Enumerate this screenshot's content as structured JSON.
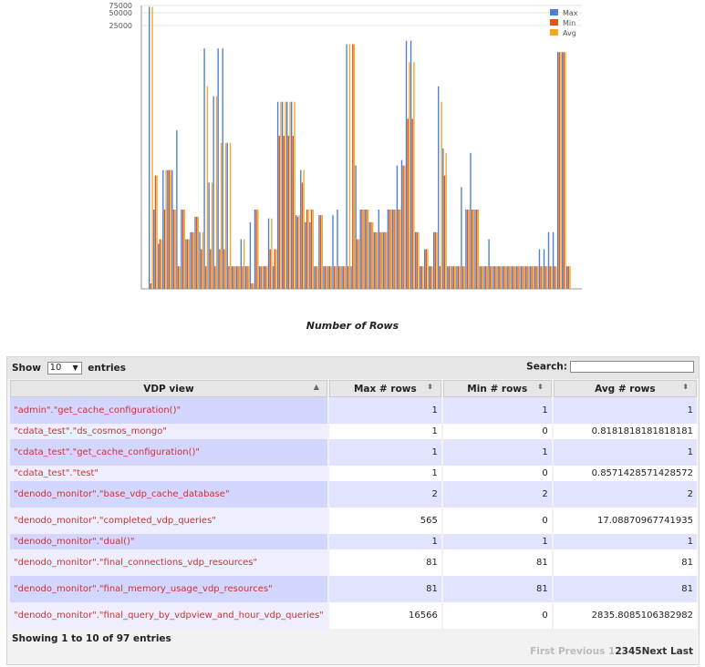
{
  "chart_data": {
    "type": "bar",
    "title": "Number of Rows",
    "y_tick_labels": [
      "75000",
      "50000",
      "25000"
    ],
    "legend": {
      "placement": "top-right",
      "entries": [
        "Max",
        "Min",
        "Avg"
      ]
    },
    "series_colors": {
      "Max": "#4f7fd6",
      "Min": "#e0571a",
      "Avg": "#f5a623"
    },
    "series": [
      {
        "name": "Max",
        "values": [
          76000,
          20,
          5,
          100,
          100,
          100,
          500,
          20,
          6,
          8,
          15,
          8,
          14000,
          60,
          2000,
          14000,
          14000,
          300,
          2,
          2,
          6,
          2,
          12,
          20,
          2,
          2,
          14,
          2,
          1600,
          1600,
          1600,
          1600,
          16,
          100,
          12,
          12,
          2,
          16,
          2,
          2,
          16,
          20,
          2,
          16566,
          2,
          120,
          20,
          20,
          12,
          8,
          20,
          8,
          20,
          20,
          120,
          150,
          19000,
          19000,
          8,
          2,
          4,
          2,
          8,
          3000,
          240,
          2,
          2,
          2,
          50,
          20,
          200,
          20,
          2,
          2,
          6,
          2,
          2,
          2,
          2,
          2,
          2,
          2,
          2,
          2,
          2,
          4,
          4,
          8,
          8,
          12000,
          12000,
          2
        ]
      },
      {
        "name": "Min",
        "values": [
          1,
          80,
          6,
          20,
          100,
          20,
          2,
          20,
          6,
          8,
          15,
          4,
          2,
          4,
          2,
          4,
          4,
          2,
          2,
          2,
          2,
          2,
          1,
          20,
          2,
          2,
          4,
          4,
          400,
          400,
          400,
          400,
          15,
          60,
          20,
          20,
          2,
          16,
          2,
          2,
          2,
          2,
          2,
          2,
          16566,
          6,
          20,
          20,
          12,
          8,
          8,
          8,
          20,
          20,
          20,
          120,
          800,
          800,
          8,
          2,
          4,
          2,
          8,
          2,
          80,
          2,
          2,
          2,
          2,
          20,
          20,
          20,
          2,
          2,
          2,
          2,
          2,
          2,
          2,
          2,
          2,
          2,
          2,
          2,
          2,
          2,
          2,
          2,
          2,
          12000,
          12000,
          2
        ]
      },
      {
        "name": "Avg",
        "values": [
          76000,
          80,
          6,
          100,
          100,
          20,
          2,
          20,
          6,
          8,
          15,
          8,
          3000,
          60,
          2000,
          300,
          300,
          300,
          2,
          2,
          6,
          2,
          1,
          20,
          2,
          2,
          14,
          4,
          1600,
          1600,
          1600,
          1600,
          16,
          100,
          20,
          20,
          2,
          16,
          2,
          2,
          2,
          2,
          2,
          16566,
          16566,
          6,
          20,
          20,
          12,
          8,
          8,
          8,
          20,
          20,
          20,
          120,
          8000,
          8000,
          8,
          2,
          4,
          2,
          8,
          1600,
          200,
          2,
          2,
          2,
          2,
          20,
          20,
          20,
          2,
          2,
          2,
          2,
          2,
          2,
          2,
          2,
          2,
          2,
          2,
          2,
          2,
          2,
          2,
          2,
          2,
          12000,
          12000,
          2
        ]
      }
    ]
  },
  "table": {
    "show_label": "Show",
    "entries_label": "entries",
    "page_length": "10",
    "page_length_arrow": "▼",
    "search_label": "Search:",
    "search_value": "",
    "columns": [
      "VDP view",
      "Max # rows",
      "Min # rows",
      "Avg # rows"
    ],
    "sort_icons": [
      "▲",
      "⬍",
      "⬍",
      "⬍"
    ],
    "rows": [
      {
        "view": "\"admin\".\"get_cache_configuration()\"",
        "max": "1",
        "min": "1",
        "avg": "1"
      },
      {
        "view": "\"cdata_test\".\"ds_cosmos_mongo\"",
        "max": "1",
        "min": "0",
        "avg": "0.8181818181818181"
      },
      {
        "view": "\"cdata_test\".\"get_cache_configuration()\"",
        "max": "1",
        "min": "1",
        "avg": "1"
      },
      {
        "view": "\"cdata_test\".\"test\"",
        "max": "1",
        "min": "0",
        "avg": "0.8571428571428572"
      },
      {
        "view": "\"denodo_monitor\".\"base_vdp_cache_database\"",
        "max": "2",
        "min": "2",
        "avg": "2"
      },
      {
        "view": "\"denodo_monitor\".\"completed_vdp_queries\"",
        "max": "565",
        "min": "0",
        "avg": "17.08870967741935"
      },
      {
        "view": "\"denodo_monitor\".\"dual()\"",
        "max": "1",
        "min": "1",
        "avg": "1"
      },
      {
        "view": "\"denodo_monitor\".\"final_connections_vdp_resources\"",
        "max": "81",
        "min": "81",
        "avg": "81"
      },
      {
        "view": "\"denodo_monitor\".\"final_memory_usage_vdp_resources\"",
        "max": "81",
        "min": "81",
        "avg": "81"
      },
      {
        "view": "\"denodo_monitor\".\"final_query_by_vdpview_and_hour_vdp_queries\"",
        "max": "16566",
        "min": "0",
        "avg": "2835.8085106382982"
      }
    ],
    "info": "Showing 1 to 10 of 97 entries",
    "pagination": {
      "first": "First",
      "previous": "Previous",
      "pages": [
        "1",
        "2",
        "3",
        "4",
        "5"
      ],
      "next": "Next",
      "last": "Last"
    }
  }
}
